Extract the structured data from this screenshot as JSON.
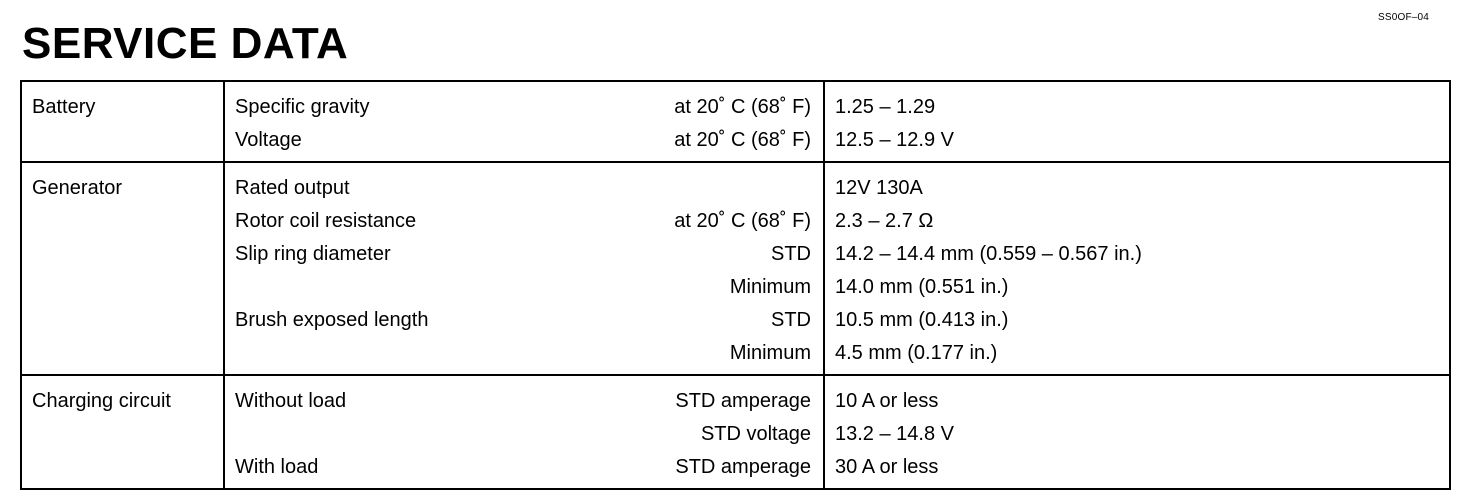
{
  "header": {
    "code": "SS0OF–04",
    "title": "SERVICE DATA"
  },
  "groups": [
    {
      "system": "Battery",
      "rows": [
        {
          "item": "Specific gravity",
          "cond": "at 20˚ C (68˚ F)",
          "value": "1.25 – 1.29"
        },
        {
          "item": "Voltage",
          "cond": "at 20˚ C (68˚ F)",
          "value": "12.5 – 12.9 V"
        }
      ]
    },
    {
      "system": "Generator",
      "rows": [
        {
          "item": "Rated output",
          "cond": "",
          "value": "12V  130A"
        },
        {
          "item": "Rotor coil resistance",
          "cond": "at 20˚ C (68˚ F)",
          "value": "2.3 – 2.7 Ω"
        },
        {
          "item": "Slip ring diameter",
          "cond": "STD",
          "value": "14.2 – 14.4 mm (0.559 – 0.567 in.)"
        },
        {
          "item": "",
          "cond": "Minimum",
          "value": "14.0 mm (0.551 in.)"
        },
        {
          "item": "Brush exposed length",
          "cond": "STD",
          "value": "10.5 mm (0.413 in.)"
        },
        {
          "item": "",
          "cond": "Minimum",
          "value": "4.5 mm (0.177 in.)"
        }
      ]
    },
    {
      "system": "Charging circuit",
      "rows": [
        {
          "item": "Without load",
          "cond": "STD amperage",
          "value": "10 A or less"
        },
        {
          "item": "",
          "cond": "STD voltage",
          "value": "13.2 – 14.8 V"
        },
        {
          "item": "With load",
          "cond": "STD amperage",
          "value": "30 A or less"
        }
      ]
    }
  ]
}
